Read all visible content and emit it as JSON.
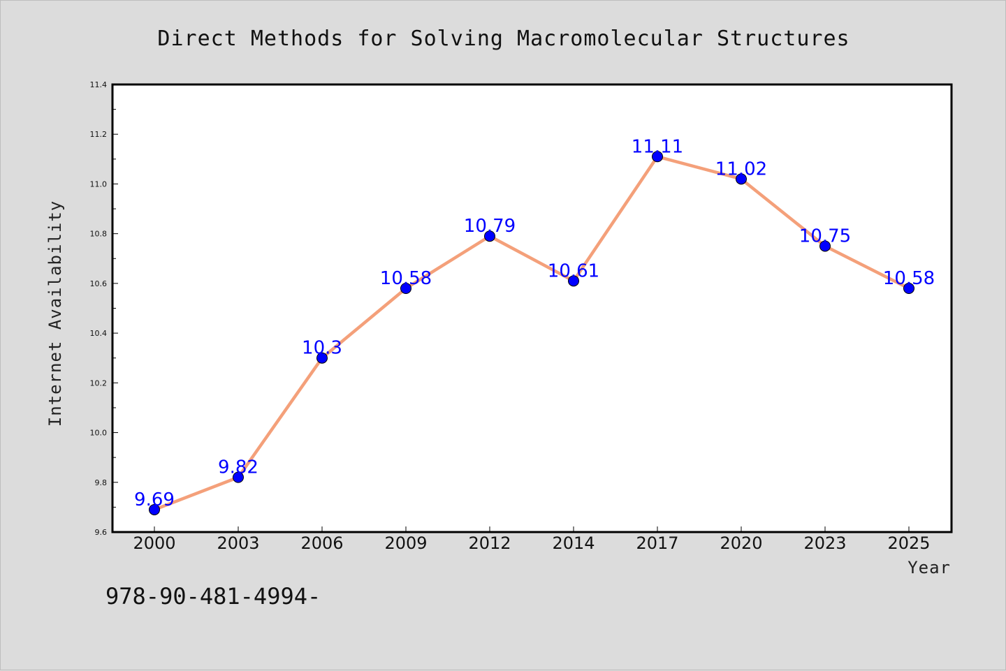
{
  "chart_data": {
    "type": "line",
    "title": "Direct Methods for Solving Macromolecular Structures",
    "xlabel": "Year",
    "ylabel": "Internet Availability",
    "categories": [
      "2000",
      "2003",
      "2006",
      "2009",
      "2012",
      "2014",
      "2017",
      "2020",
      "2023",
      "2025"
    ],
    "series": [
      {
        "values": [
          9.69,
          9.82,
          10.3,
          10.58,
          10.79,
          10.61,
          11.11,
          11.02,
          10.75,
          10.58
        ],
        "data_labels": [
          "9.69",
          "9.82",
          "10.3",
          "10.58",
          "10.79",
          "10.61",
          "11.11",
          "11.02",
          "10.75",
          "10.58"
        ],
        "line_color": "#f4a07a",
        "marker_color": "#0000ff"
      }
    ],
    "ylim": [
      9.6,
      11.4
    ],
    "yticks": [
      "9.6",
      "9.8",
      "10.0",
      "10.2",
      "10.4",
      "10.6",
      "10.8",
      "11.0",
      "11.2",
      "11.4"
    ],
    "grid": false,
    "legend": "none"
  },
  "footer": {
    "text": "978-90-481-4994-"
  },
  "colors": {
    "background": "#dcdcdc",
    "plot_area": "#ffffff",
    "axes": "#000000"
  }
}
